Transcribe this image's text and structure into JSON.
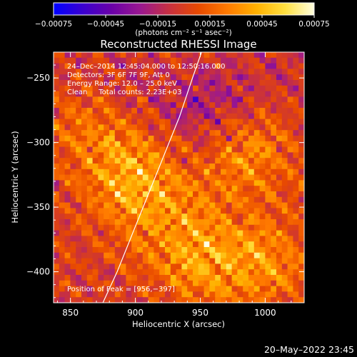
{
  "chart_data": {
    "type": "heatmap",
    "title": "Reconstructed RHESSI Image",
    "xlabel": "Heliocentric X (arcsec)",
    "ylabel": "Heliocentric Y (arcsec)",
    "xlim": [
      837,
      1030
    ],
    "ylim": [
      -424,
      -230
    ],
    "x_ticks": [
      850,
      900,
      950,
      1000
    ],
    "x_tick_labels": [
      "850",
      "900",
      "950",
      "1000"
    ],
    "y_ticks": [
      -250,
      -300,
      -350,
      -400
    ],
    "y_tick_labels": [
      "−250",
      "−300",
      "−350",
      "−400"
    ],
    "colorbar": {
      "range": [
        -0.00075,
        0.00075
      ],
      "ticks": [
        -0.00075,
        -0.00045,
        -0.00015,
        0.00015,
        0.00045,
        0.00075
      ],
      "tick_labels": [
        "−0.00075",
        "−0.00045",
        "−0.00015",
        "0.00015",
        "0.00045",
        "0.00075"
      ],
      "unit_label": "(photons cm⁻² s⁻¹ asec⁻²)",
      "colors": [
        "#0000ff",
        "#3a00d0",
        "#6a00a8",
        "#9a1890",
        "#c83040",
        "#e84a00",
        "#ff7a00",
        "#ffb000",
        "#ffe040",
        "#ffffe0"
      ]
    },
    "annotations": {
      "line1": "24–Dec–2014 12:45:04.000 to 12:50:16.000",
      "line2": "Detectors: 3F 6F 7F 9F, Att 0",
      "line3": "Energy Range: 12.0 – 25.0 keV",
      "line4": "Clean     Total counts: 2.23E+03",
      "peak": "Position of Peak = [956,−397]"
    },
    "limb_arc": {
      "x": [
        875,
        886,
        898,
        910,
        922,
        934,
        944,
        951
      ],
      "y": [
        -424,
        -400,
        -370,
        -340,
        -310,
        -280,
        -250,
        -230
      ]
    },
    "bright_regions": [
      {
        "x": 903,
        "y": -334,
        "level": 0.78
      },
      {
        "x": 983,
        "y": -304,
        "level": 0.7
      },
      {
        "x": 948,
        "y": -385,
        "level": 0.72
      },
      {
        "x": 870,
        "y": -294,
        "level": 0.48
      },
      {
        "x": 1000,
        "y": -395,
        "level": 0.55
      }
    ],
    "dark_regions": [
      {
        "x": 958,
        "y": -278,
        "level": -0.55
      },
      {
        "x": 884,
        "y": -260,
        "level": -0.2
      },
      {
        "x": 1015,
        "y": -255,
        "level": -0.15
      }
    ]
  },
  "timestamp": "20–May–2022 23:45"
}
